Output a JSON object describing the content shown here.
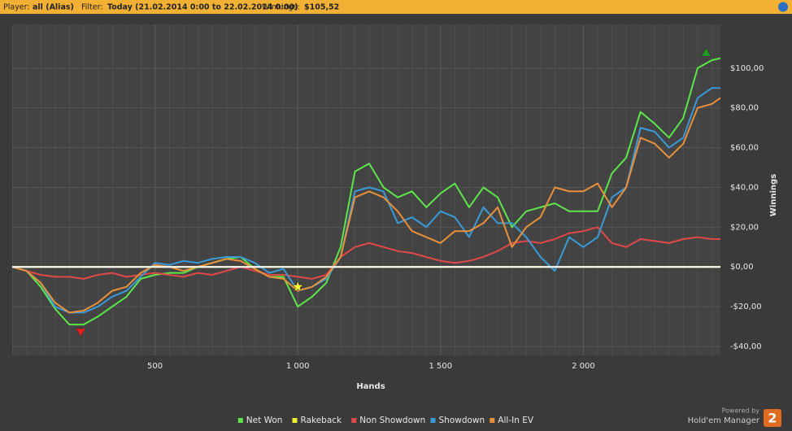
{
  "header": {
    "player_label": "Player:",
    "player": "all (Alias)",
    "filter_label": "Filter:",
    "filter": "Today (21.02.2014 0:00 to 22.02.2014 0:00)",
    "winnings_label": "Winnings:",
    "winnings": "$105,52"
  },
  "footer": {
    "powered": "Powered by",
    "brand": "Hold'em Manager",
    "logo_text": "2"
  },
  "chart_data": {
    "type": "line",
    "xlabel": "Hands",
    "ylabel": "Winnings",
    "x": [
      0,
      50,
      100,
      150,
      200,
      250,
      300,
      350,
      400,
      450,
      500,
      550,
      600,
      650,
      700,
      750,
      800,
      850,
      900,
      950,
      1000,
      1050,
      1100,
      1150,
      1200,
      1250,
      1300,
      1350,
      1400,
      1450,
      1500,
      1550,
      1600,
      1650,
      1700,
      1750,
      1800,
      1850,
      1900,
      1950,
      2000,
      2050,
      2100,
      2150,
      2200,
      2250,
      2300,
      2350,
      2400,
      2450,
      2480
    ],
    "series": [
      {
        "name": "Net Won",
        "color": "#5ce64a",
        "values": [
          0,
          -2,
          -10,
          -21,
          -29,
          -29,
          -25,
          -20,
          -15,
          -6,
          -4,
          -3,
          -3,
          0,
          2,
          4,
          5,
          -1,
          -5,
          -5,
          -20,
          -15,
          -8,
          10,
          48,
          52,
          40,
          35,
          38,
          30,
          37,
          42,
          30,
          40,
          35,
          20,
          28,
          30,
          32,
          28,
          28,
          28,
          47,
          55,
          78,
          72,
          65,
          75,
          100,
          104,
          105
        ]
      },
      {
        "name": "Rakeback",
        "color": "#f0f030",
        "values": [
          0,
          0,
          0,
          0,
          0,
          0,
          0,
          0,
          0,
          0,
          0,
          0,
          0,
          0,
          0,
          0,
          0,
          0,
          0,
          0,
          0,
          0,
          0,
          0,
          0,
          0,
          0,
          0,
          0,
          0,
          0,
          0,
          0,
          0,
          0,
          0,
          0,
          0,
          0,
          0,
          0,
          0,
          0,
          0,
          0,
          0,
          0,
          0,
          0,
          0,
          0
        ]
      },
      {
        "name": "Non Showdown",
        "color": "#e04848",
        "values": [
          0,
          -2,
          -4,
          -5,
          -5,
          -6,
          -4,
          -3,
          -5,
          -4,
          -3,
          -4,
          -5,
          -3,
          -4,
          -2,
          0,
          -2,
          -4,
          -4,
          -5,
          -6,
          -4,
          5,
          10,
          12,
          10,
          8,
          7,
          5,
          3,
          2,
          3,
          5,
          8,
          12,
          13,
          12,
          14,
          17,
          18,
          20,
          12,
          10,
          14,
          13,
          12,
          14,
          15,
          14,
          14
        ]
      },
      {
        "name": "Showdown",
        "color": "#3a9ad8",
        "values": [
          0,
          -2,
          -8,
          -20,
          -23,
          -23,
          -20,
          -15,
          -12,
          -5,
          2,
          1,
          3,
          2,
          4,
          5,
          5,
          2,
          -3,
          -1,
          -12,
          -10,
          -6,
          5,
          38,
          40,
          38,
          22,
          25,
          20,
          28,
          25,
          15,
          30,
          22,
          22,
          15,
          5,
          -2,
          15,
          10,
          15,
          35,
          40,
          70,
          68,
          60,
          65,
          85,
          90,
          90
        ]
      },
      {
        "name": "All-In EV",
        "color": "#e8903a",
        "values": [
          0,
          -2,
          -8,
          -18,
          -23,
          -22,
          -18,
          -12,
          -10,
          -3,
          1,
          0,
          -2,
          0,
          2,
          4,
          3,
          -1,
          -5,
          -6,
          -12,
          -10,
          -5,
          5,
          35,
          38,
          35,
          28,
          18,
          15,
          12,
          18,
          18,
          22,
          30,
          10,
          20,
          25,
          40,
          38,
          38,
          42,
          30,
          40,
          65,
          62,
          55,
          62,
          80,
          82,
          85
        ]
      }
    ],
    "annotations": [
      {
        "x": 240,
        "y": -33,
        "shape": "triangle-down",
        "color": "#e02020"
      },
      {
        "x": 1000,
        "y": -10,
        "shape": "star",
        "color": "#ffff30"
      },
      {
        "x": 2430,
        "y": 108,
        "shape": "triangle-up",
        "color": "#1e9a1e"
      }
    ],
    "xlim": [
      0,
      2480
    ],
    "ylim": [
      -44.5,
      122
    ],
    "xticks": [
      500,
      {
        "value": 1000,
        "label": "1 000"
      },
      {
        "value": 1500,
        "label": "1 500"
      },
      {
        "value": 2000,
        "label": "2 000"
      }
    ],
    "yticks": [
      {
        "value": -40,
        "label": "-$40,00"
      },
      {
        "value": -20,
        "label": "-$20,00"
      },
      {
        "value": 0,
        "label": "$0,00"
      },
      {
        "value": 20,
        "label": "$20,00"
      },
      {
        "value": 40,
        "label": "$40,00"
      },
      {
        "value": 60,
        "label": "$60,00"
      },
      {
        "value": 80,
        "label": "$80,00"
      },
      {
        "value": 100,
        "label": "$100,00"
      }
    ],
    "grid": true,
    "legend": "bottom"
  }
}
